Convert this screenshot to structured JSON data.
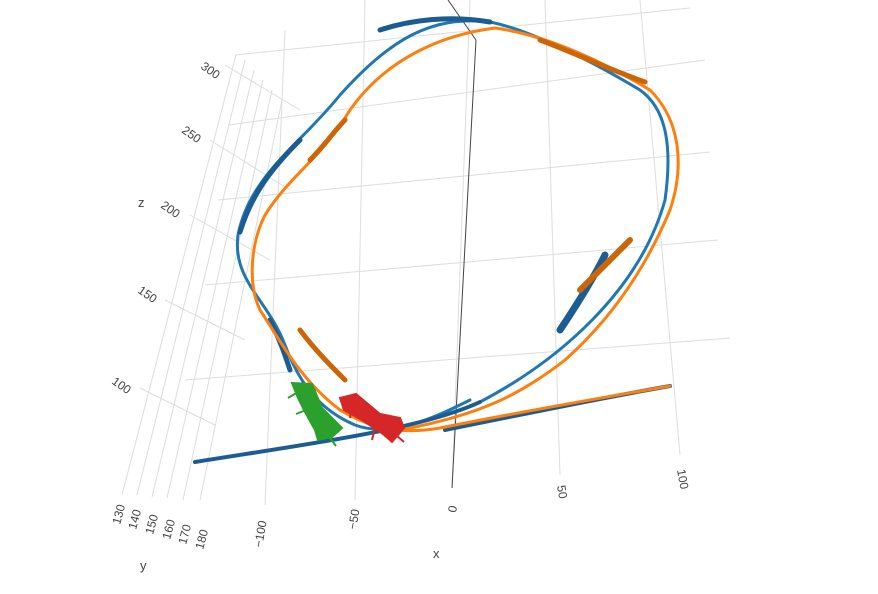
{
  "chart_data": {
    "type": "line",
    "subtype": "3d-ribbon",
    "title": "",
    "axes": {
      "x": {
        "label": "x",
        "ticks": [
          "−100",
          "−50",
          "0",
          "50",
          "100"
        ],
        "tick_values": [
          -100,
          -50,
          0,
          50,
          100
        ],
        "range": [
          -120,
          100
        ]
      },
      "y": {
        "label": "y",
        "ticks": [
          "130",
          "140",
          "150",
          "160",
          "170",
          "180"
        ],
        "tick_values": [
          130,
          140,
          150,
          160,
          170,
          180
        ],
        "range": [
          125,
          185
        ]
      },
      "z": {
        "label": "z",
        "ticks": [
          "100",
          "150",
          "200",
          "250",
          "300"
        ],
        "tick_values": [
          100,
          150,
          200,
          250,
          300
        ],
        "range": [
          70,
          320
        ]
      }
    },
    "grid": true,
    "legend": "none",
    "series": [
      {
        "kind": "ribbon",
        "color": "#1f77b4",
        "dark_color": "#1b5d93"
      },
      {
        "kind": "ribbon",
        "color": "#ff7f0e",
        "dark_color": "#cc6408"
      },
      {
        "kind": "aircraft-marker",
        "color": "#2ca02c"
      },
      {
        "kind": "aircraft-marker",
        "color": "#d62728"
      }
    ]
  }
}
